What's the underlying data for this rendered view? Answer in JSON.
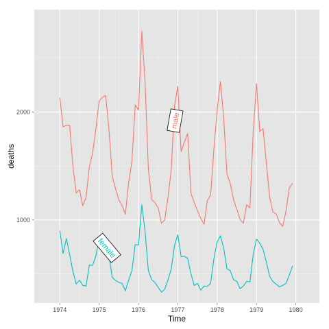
{
  "chart_data": {
    "type": "line",
    "title": "",
    "xlabel": "Time",
    "ylabel": "deaths",
    "xlim": [
      1973.35,
      1980.6
    ],
    "ylim": [
      230,
      2950
    ],
    "x_ticks": [
      1974,
      1975,
      1976,
      1977,
      1978,
      1979,
      1980
    ],
    "x_tick_labels": [
      "1974",
      "1975",
      "1976",
      "1977",
      "1978",
      "1979",
      "1980"
    ],
    "y_ticks": [
      1000,
      2000
    ],
    "y_tick_labels": [
      "1000",
      "2000"
    ],
    "grid": true,
    "legend": "none",
    "x_start": 1974,
    "x_step": 0.0833333,
    "series": [
      {
        "name": "male",
        "color": "#F8766D",
        "label_at": {
          "x": 1976.93,
          "y": 1920
        },
        "values": [
          2134,
          1863,
          1877,
          1877,
          1492,
          1249,
          1280,
          1131,
          1209,
          1492,
          1621,
          1846,
          2103,
          2137,
          2153,
          1833,
          1403,
          1288,
          1186,
          1133,
          1053,
          1347,
          1545,
          2066,
          2020,
          2750,
          2283,
          1479,
          1189,
          1160,
          1113,
          970,
          999,
          1208,
          1467,
          2059,
          2240,
          1634,
          1722,
          1801,
          1246,
          1162,
          1087,
          1013,
          959,
          1179,
          1229,
          1655,
          2019,
          2284,
          1942,
          1423,
          1340,
          1187,
          1098,
          1004,
          970,
          1140,
          1110,
          1812,
          2263,
          1820,
          1846,
          1531,
          1215,
          1075,
          1056,
          975,
          940,
          1081,
          1294,
          1341
        ]
      },
      {
        "name": "female",
        "color": "#00BFC4",
        "label_at": {
          "x": 1975.2,
          "y": 740
        },
        "values": [
          901,
          689,
          827,
          677,
          522,
          406,
          441,
          393,
          387,
          582,
          578,
          666,
          830,
          752,
          785,
          664,
          467,
          438,
          421,
          412,
          343,
          440,
          531,
          771,
          767,
          1141,
          896,
          532,
          447,
          420,
          376,
          330,
          357,
          445,
          546,
          764,
          862,
          660,
          663,
          643,
          502,
          392,
          411,
          348,
          387,
          385,
          411,
          638,
          796,
          853,
          737,
          546,
          530,
          446,
          431,
          362,
          387,
          430,
          425,
          679,
          821,
          785,
          727,
          612,
          478,
          429,
          405,
          379,
          393,
          411,
          487,
          574
        ]
      }
    ]
  }
}
